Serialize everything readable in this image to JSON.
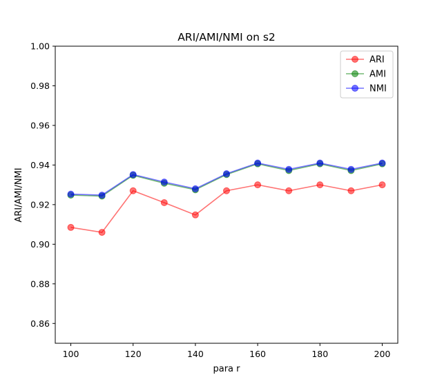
{
  "chart_data": {
    "type": "line",
    "title": "ARI/AMI/NMI on s2",
    "xlabel": "para r",
    "ylabel": "ARI/AMI/NMI",
    "x": [
      100,
      110,
      120,
      130,
      140,
      150,
      160,
      170,
      180,
      190,
      200
    ],
    "xlim": [
      95,
      205
    ],
    "ylim": [
      0.85,
      1.0
    ],
    "xticks": [
      "100",
      "120",
      "140",
      "160",
      "180",
      "200"
    ],
    "yticks": [
      "0.86",
      "0.88",
      "0.90",
      "0.92",
      "0.94",
      "0.96",
      "0.98",
      "1.00"
    ],
    "grid": false,
    "legend_position": "top-right",
    "series": [
      {
        "name": "ARI",
        "color": "#ff0000",
        "values": [
          0.9085,
          0.906,
          0.927,
          0.921,
          0.9148,
          0.927,
          0.93,
          0.927,
          0.93,
          0.927,
          0.93
        ]
      },
      {
        "name": "AMI",
        "color": "#008000",
        "values": [
          0.9248,
          0.9243,
          0.9348,
          0.9308,
          0.9275,
          0.9352,
          0.9406,
          0.9372,
          0.9406,
          0.9372,
          0.9406
        ]
      },
      {
        "name": "NMI",
        "color": "#0000ff",
        "values": [
          0.9253,
          0.9248,
          0.9352,
          0.9314,
          0.928,
          0.9356,
          0.941,
          0.9378,
          0.941,
          0.9378,
          0.941
        ]
      }
    ]
  }
}
